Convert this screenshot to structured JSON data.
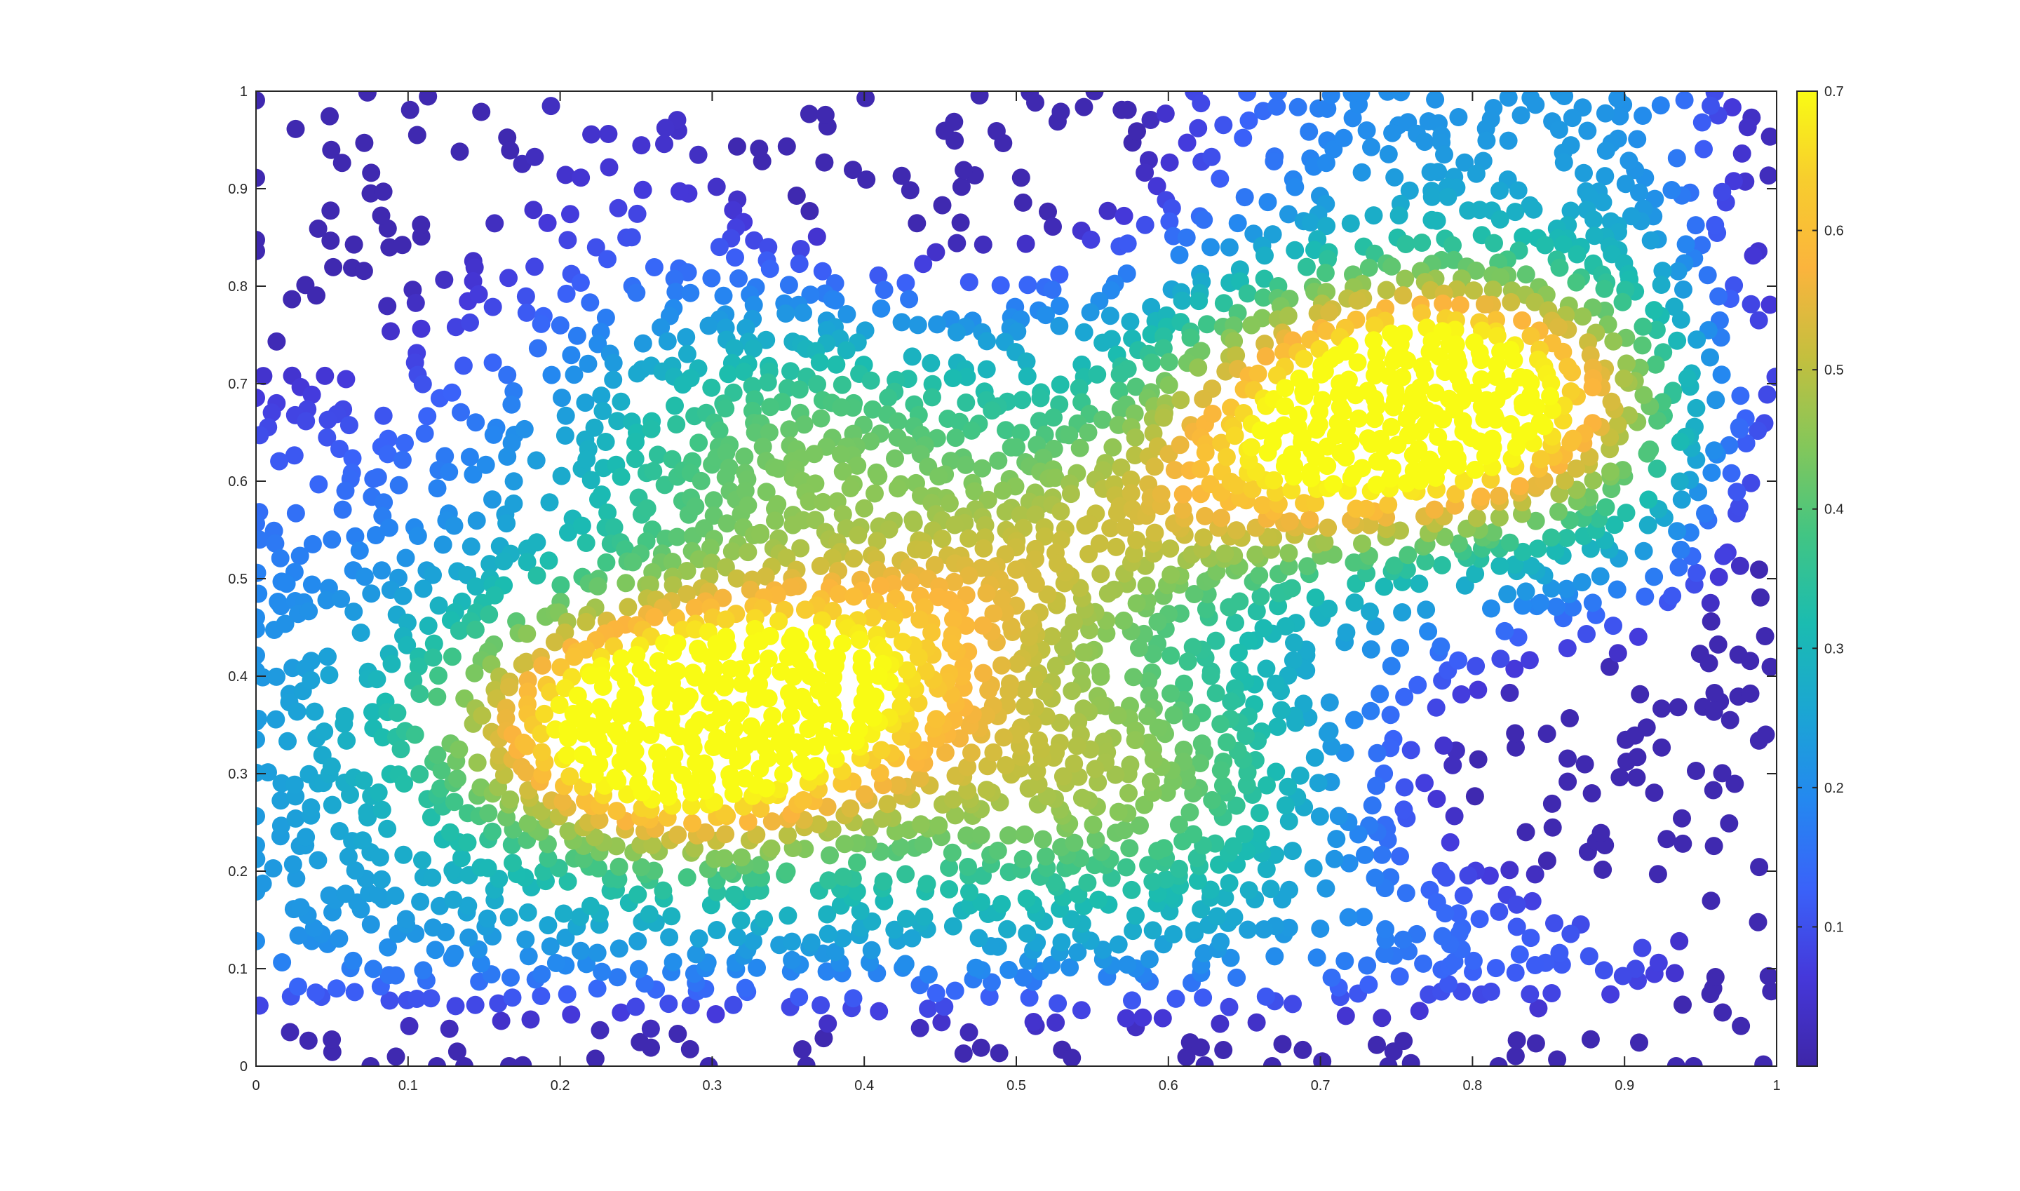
{
  "chart_data": {
    "type": "scatter",
    "title": "",
    "xlabel": "",
    "ylabel": "",
    "xlim": [
      0,
      1
    ],
    "ylim": [
      0,
      1
    ],
    "grid": false,
    "x_ticks": [
      0,
      0.1,
      0.2,
      0.3,
      0.4,
      0.5,
      0.6,
      0.7,
      0.8,
      0.9,
      1
    ],
    "x_tick_labels": [
      "0",
      "0.1",
      "0.2",
      "0.3",
      "0.4",
      "0.5",
      "0.6",
      "0.7",
      "0.8",
      "0.9",
      "1"
    ],
    "y_ticks": [
      0,
      0.1,
      0.2,
      0.3,
      0.4,
      0.5,
      0.6,
      0.7,
      0.8,
      0.9,
      1
    ],
    "y_tick_labels": [
      "0",
      "0.1",
      "0.2",
      "0.3",
      "0.4",
      "0.5",
      "0.6",
      "0.7",
      "0.8",
      "0.9",
      "1"
    ],
    "colormap": "parula",
    "colormap_stops": [
      "#3e26a8",
      "#4538da",
      "#3a62f9",
      "#2488f0",
      "#1ba6d3",
      "#1bbcb0",
      "#42c583",
      "#84c75a",
      "#c4bf3e",
      "#fbb43d",
      "#f7cd2e",
      "#f9fb14"
    ],
    "colorbar": {
      "limits": [
        0,
        0.7
      ],
      "ticks": [
        0.1,
        0.2,
        0.3,
        0.4,
        0.5,
        0.6,
        0.7
      ],
      "tick_labels": [
        "0.1",
        "0.2",
        "0.3",
        "0.4",
        "0.5",
        "0.6",
        "0.7"
      ],
      "position": "right"
    },
    "marker": "filled-circle",
    "surface_peaks": [
      {
        "x": 0.28,
        "y": 0.35,
        "value": 0.7
      },
      {
        "x": 0.77,
        "y": 0.68,
        "value": 0.7
      },
      {
        "x": 0.36,
        "y": 0.63,
        "value": 0.43
      },
      {
        "x": 0.56,
        "y": 0.3,
        "value": 0.46
      }
    ],
    "surface_troughs": [
      {
        "x": 0.46,
        "y": 0.95,
        "value": 0.05
      },
      {
        "x": 0.9,
        "y": 0.3,
        "value": 0.03
      }
    ]
  }
}
